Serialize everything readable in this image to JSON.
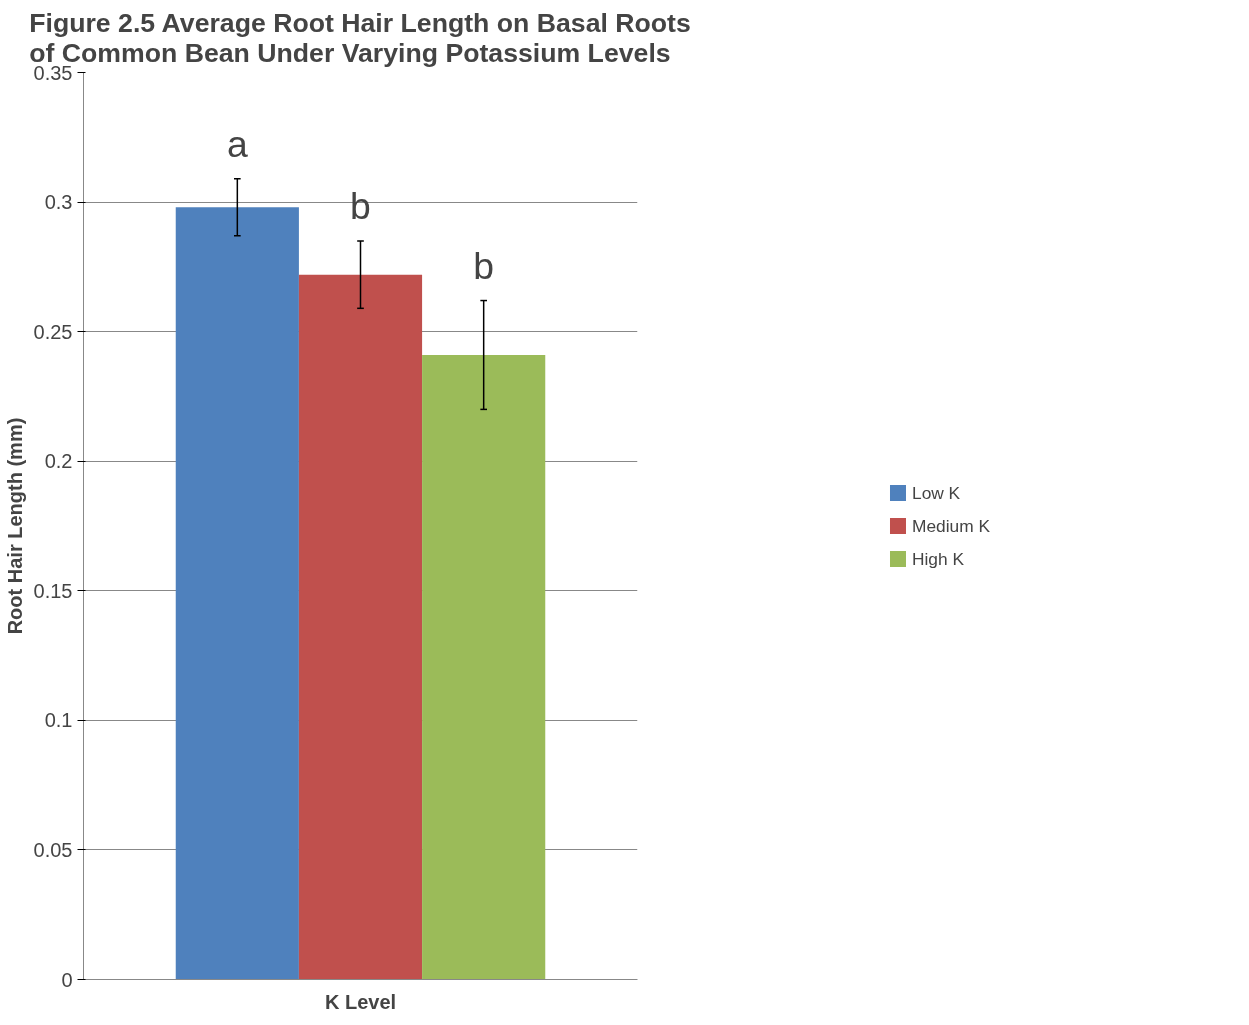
{
  "chart_data": {
    "type": "bar",
    "title": "Figure 2.5 Average Root Hair Length on Basal Roots of Common Bean Under Varying Potassium Levels",
    "xlabel": "K Level",
    "ylabel": "Root Hair Length (mm)",
    "categories": [
      null
    ],
    "series": [
      {
        "name": "Low K",
        "color": "#4f81bd",
        "values": [
          0.298
        ],
        "errors": [
          0.011
        ]
      },
      {
        "name": "Medium K",
        "color": "#c0504d",
        "values": [
          0.272
        ],
        "errors": [
          0.013
        ]
      },
      {
        "name": "High K",
        "color": "#9bbb59",
        "values": [
          0.241
        ],
        "errors": [
          0.021
        ]
      }
    ],
    "ylim": [
      0,
      0.35
    ],
    "yticks": [
      0,
      0.05,
      0.1,
      0.15,
      0.2,
      0.25,
      0.3,
      0.35
    ],
    "grid": "y",
    "legend": "right",
    "annotations": [
      "a",
      "b",
      "b"
    ]
  }
}
